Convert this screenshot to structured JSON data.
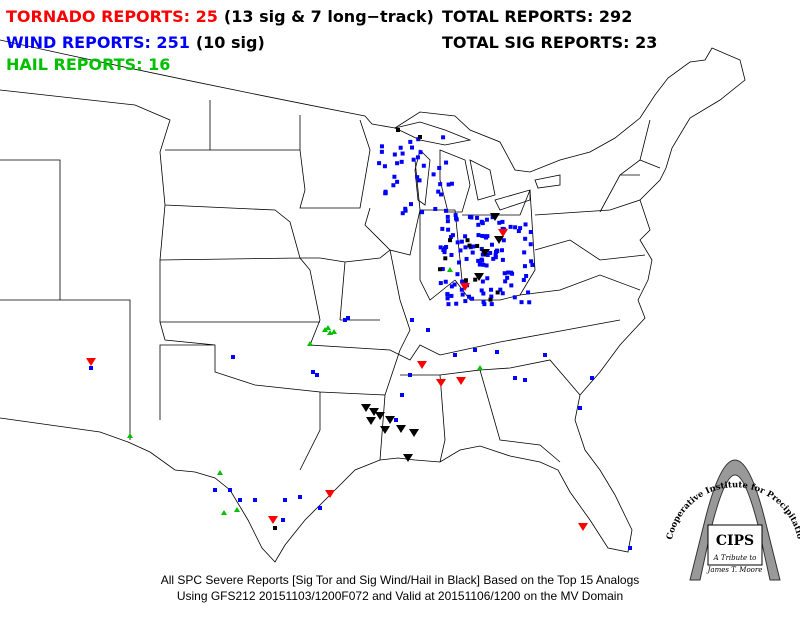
{
  "header": {
    "tornado": "TORNADO REPORTS: 25",
    "tornado_note": "(13 sig & 7 long−track)",
    "wind": "WIND REPORTS: 251",
    "wind_note": "(10 sig)",
    "hail": "HAIL REPORTS: 16",
    "total": "TOTAL REPORTS: 292",
    "total_sig": "TOTAL SIG REPORTS: 23"
  },
  "caption": [
    "All SPC Severe Reports [Sig Tor and Sig Wind/Hail in Black] Based on the Top 15 Analogs",
    "Using GFS212 20151103/1200F072 and Valid at 20151106/1200 on the MV Domain"
  ],
  "logo": {
    "name": "Cooperative Institute for Precipitation Systems",
    "acronym": "CIPS",
    "tribute": "A Tribute to",
    "person": "James T. Moore"
  }
}
